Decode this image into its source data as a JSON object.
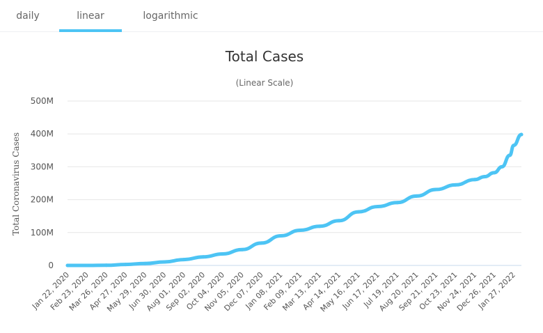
{
  "tabs": [
    {
      "label": "daily",
      "active": false
    },
    {
      "label": "linear",
      "active": true
    },
    {
      "label": "logarithmic",
      "active": false
    }
  ],
  "colors": {
    "line": "#4dc4f4",
    "tab_accent": "#4dc4f4",
    "grid": "#e6e6e6",
    "baseline": "#c7d8ee",
    "text": "#555555"
  },
  "chart_data": {
    "type": "line",
    "title": "Total Cases",
    "subtitle": "(Linear Scale)",
    "ylabel": "Total Coronavirus Cases",
    "xlabel": "",
    "ylim": [
      0,
      500000000
    ],
    "yticks": [
      {
        "value": 0,
        "label": "0"
      },
      {
        "value": 100000000,
        "label": "100M"
      },
      {
        "value": 200000000,
        "label": "200M"
      },
      {
        "value": 300000000,
        "label": "300M"
      },
      {
        "value": 400000000,
        "label": "400M"
      },
      {
        "value": 500000000,
        "label": "500M"
      }
    ],
    "grid": true,
    "legend": "none",
    "categories": [
      "Jan 22, 2020",
      "Feb 23, 2020",
      "Mar 26, 2020",
      "Apr 27, 2020",
      "May 29, 2020",
      "Jun 30, 2020",
      "Aug 01, 2020",
      "Sep 02, 2020",
      "Oct 04, 2020",
      "Nov 05, 2020",
      "Dec 07, 2020",
      "Jan 08, 2021",
      "Feb 09, 2021",
      "Mar 13, 2021",
      "Apr 14, 2021",
      "May 16, 2021",
      "Jun 17, 2021",
      "Jul 19, 2021",
      "Aug 20, 2021",
      "Sep 21, 2021",
      "Oct 23, 2021",
      "Nov 24, 2021",
      "Dec 26, 2021",
      "Jan 27, 2022"
    ],
    "series": [
      {
        "name": "Total Cases",
        "x": [
          0,
          1,
          2,
          3,
          4,
          5,
          6,
          7,
          8,
          9,
          10,
          11,
          12,
          13,
          14,
          15,
          16,
          17,
          18,
          19,
          20,
          21,
          21.5,
          22,
          22.4,
          22.8,
          23,
          23.4
        ],
        "values": [
          600,
          80000,
          500000,
          3000000,
          5900000,
          10500000,
          17800000,
          26000000,
          35000000,
          48000000,
          68000000,
          90000000,
          107000000,
          119000000,
          136000000,
          163000000,
          179000000,
          191000000,
          211000000,
          231000000,
          245000000,
          261000000,
          270000000,
          282000000,
          300000000,
          335000000,
          365000000,
          398000000
        ]
      }
    ]
  }
}
